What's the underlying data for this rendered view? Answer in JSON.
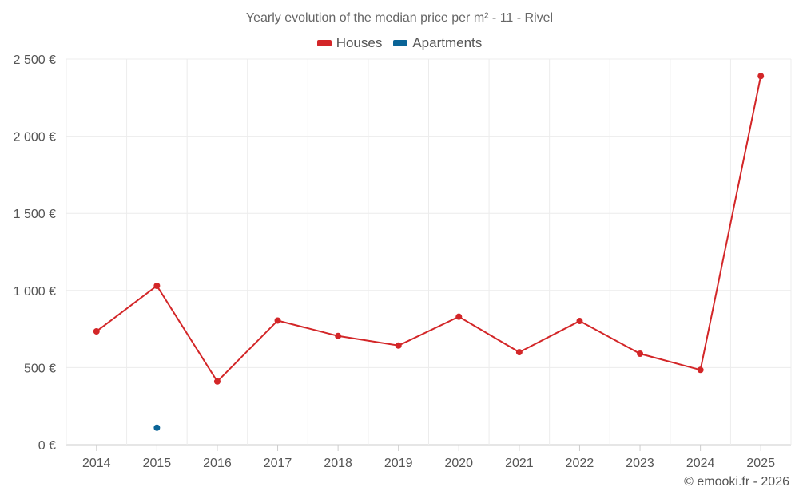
{
  "colors": {
    "houses": "#d32628",
    "apartments": "#0a6497",
    "grid": "#ececec",
    "axis": "#cccccc"
  },
  "chart_data": {
    "type": "line",
    "title": "Yearly evolution of the median price per m² - 11 - Rivel",
    "categories": [
      "2014",
      "2015",
      "2016",
      "2017",
      "2018",
      "2019",
      "2020",
      "2021",
      "2022",
      "2023",
      "2024",
      "2025"
    ],
    "series": [
      {
        "name": "Houses",
        "values": [
          735,
          1030,
          410,
          805,
          705,
          643,
          830,
          600,
          802,
          590,
          485,
          2390
        ]
      },
      {
        "name": "Apartments",
        "values": [
          null,
          110,
          null,
          null,
          null,
          null,
          null,
          null,
          null,
          null,
          null,
          null
        ]
      }
    ],
    "ylim": [
      0,
      2500
    ],
    "yticks": [
      0,
      500,
      1000,
      1500,
      2000,
      2500
    ],
    "ytick_labels": [
      "0 €",
      "500 €",
      "1 000 €",
      "1 500 €",
      "2 000 €",
      "2 500 €"
    ],
    "xlabel": "",
    "ylabel": ""
  },
  "footer": "© emooki.fr - 2026"
}
